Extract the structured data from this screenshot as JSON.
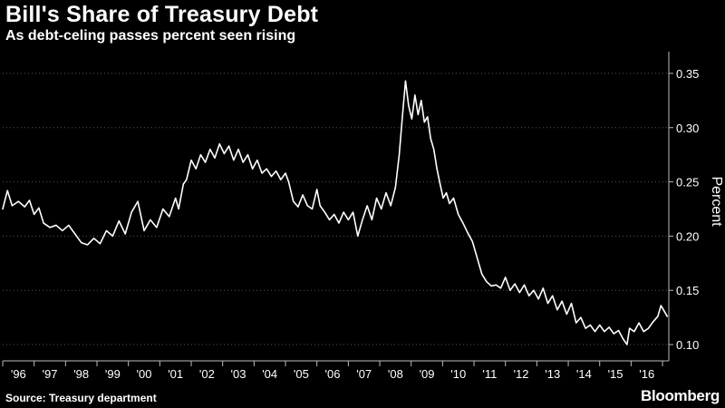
{
  "header": {
    "title": "Bill's Share of Treasury Debt",
    "subtitle": "As debt-celing passes percent seen rising"
  },
  "footer": {
    "source": "Source: Treasury department",
    "brand": "Bloomberg"
  },
  "colors": {
    "background": "#000000",
    "line": "#ffffff",
    "grid": "#555555",
    "axis": "#bbbbbb"
  },
  "chart_data": {
    "type": "line",
    "title": "Bill's Share of Treasury Debt",
    "subtitle": "As debt-celing passes percent seen rising",
    "xlabel": "",
    "ylabel": "Percent",
    "xlim": [
      1996,
      2017.2
    ],
    "ylim": [
      0.085,
      0.37
    ],
    "yticks": [
      0.1,
      0.15,
      0.2,
      0.25,
      0.3,
      0.35
    ],
    "ytick_labels": [
      "0.10",
      "0.15",
      "0.20",
      "0.25",
      "0.30",
      "0.35"
    ],
    "xtick_labels": [
      "'96",
      "'97",
      "'98",
      "'99",
      "'00",
      "'01",
      "'02",
      "'03",
      "'04",
      "'05",
      "'06",
      "'07",
      "'08",
      "'09",
      "'10",
      "'11",
      "'12",
      "'13",
      "'14",
      "'15",
      "'16"
    ],
    "grid": true,
    "series": [
      {
        "name": "Bill's share of Treasury debt",
        "points": [
          [
            1996.0,
            0.225
          ],
          [
            1996.15,
            0.242
          ],
          [
            1996.3,
            0.228
          ],
          [
            1996.5,
            0.232
          ],
          [
            1996.7,
            0.227
          ],
          [
            1996.85,
            0.233
          ],
          [
            1997.0,
            0.22
          ],
          [
            1997.15,
            0.226
          ],
          [
            1997.3,
            0.212
          ],
          [
            1997.5,
            0.208
          ],
          [
            1997.7,
            0.21
          ],
          [
            1997.9,
            0.205
          ],
          [
            1998.1,
            0.21
          ],
          [
            1998.3,
            0.202
          ],
          [
            1998.5,
            0.194
          ],
          [
            1998.7,
            0.192
          ],
          [
            1998.9,
            0.198
          ],
          [
            1999.1,
            0.193
          ],
          [
            1999.3,
            0.205
          ],
          [
            1999.5,
            0.2
          ],
          [
            1999.7,
            0.214
          ],
          [
            1999.9,
            0.202
          ],
          [
            2000.1,
            0.222
          ],
          [
            2000.3,
            0.232
          ],
          [
            2000.5,
            0.205
          ],
          [
            2000.7,
            0.215
          ],
          [
            2000.9,
            0.208
          ],
          [
            2001.1,
            0.225
          ],
          [
            2001.3,
            0.218
          ],
          [
            2001.5,
            0.235
          ],
          [
            2001.6,
            0.225
          ],
          [
            2001.75,
            0.248
          ],
          [
            2001.85,
            0.252
          ],
          [
            2002.0,
            0.27
          ],
          [
            2002.15,
            0.262
          ],
          [
            2002.3,
            0.275
          ],
          [
            2002.45,
            0.268
          ],
          [
            2002.6,
            0.28
          ],
          [
            2002.75,
            0.272
          ],
          [
            2002.9,
            0.285
          ],
          [
            2003.05,
            0.276
          ],
          [
            2003.2,
            0.283
          ],
          [
            2003.35,
            0.27
          ],
          [
            2003.5,
            0.28
          ],
          [
            2003.65,
            0.268
          ],
          [
            2003.8,
            0.275
          ],
          [
            2003.95,
            0.262
          ],
          [
            2004.1,
            0.27
          ],
          [
            2004.25,
            0.258
          ],
          [
            2004.4,
            0.262
          ],
          [
            2004.55,
            0.255
          ],
          [
            2004.7,
            0.26
          ],
          [
            2004.85,
            0.252
          ],
          [
            2005.0,
            0.258
          ],
          [
            2005.1,
            0.25
          ],
          [
            2005.25,
            0.232
          ],
          [
            2005.4,
            0.227
          ],
          [
            2005.55,
            0.238
          ],
          [
            2005.7,
            0.228
          ],
          [
            2005.85,
            0.225
          ],
          [
            2006.0,
            0.243
          ],
          [
            2006.1,
            0.228
          ],
          [
            2006.25,
            0.222
          ],
          [
            2006.4,
            0.215
          ],
          [
            2006.55,
            0.22
          ],
          [
            2006.7,
            0.212
          ],
          [
            2006.85,
            0.222
          ],
          [
            2007.0,
            0.215
          ],
          [
            2007.15,
            0.222
          ],
          [
            2007.3,
            0.2
          ],
          [
            2007.45,
            0.215
          ],
          [
            2007.6,
            0.228
          ],
          [
            2007.75,
            0.215
          ],
          [
            2007.9,
            0.235
          ],
          [
            2008.05,
            0.225
          ],
          [
            2008.2,
            0.24
          ],
          [
            2008.35,
            0.228
          ],
          [
            2008.5,
            0.245
          ],
          [
            2008.62,
            0.275
          ],
          [
            2008.72,
            0.31
          ],
          [
            2008.82,
            0.343
          ],
          [
            2008.92,
            0.32
          ],
          [
            2009.02,
            0.308
          ],
          [
            2009.12,
            0.33
          ],
          [
            2009.22,
            0.312
          ],
          [
            2009.32,
            0.325
          ],
          [
            2009.42,
            0.305
          ],
          [
            2009.52,
            0.31
          ],
          [
            2009.62,
            0.29
          ],
          [
            2009.72,
            0.28
          ],
          [
            2009.82,
            0.262
          ],
          [
            2009.92,
            0.248
          ],
          [
            2010.02,
            0.235
          ],
          [
            2010.12,
            0.24
          ],
          [
            2010.22,
            0.23
          ],
          [
            2010.35,
            0.235
          ],
          [
            2010.5,
            0.22
          ],
          [
            2010.65,
            0.212
          ],
          [
            2010.8,
            0.203
          ],
          [
            2010.95,
            0.195
          ],
          [
            2011.1,
            0.18
          ],
          [
            2011.25,
            0.165
          ],
          [
            2011.4,
            0.158
          ],
          [
            2011.55,
            0.154
          ],
          [
            2011.7,
            0.155
          ],
          [
            2011.85,
            0.152
          ],
          [
            2012.0,
            0.162
          ],
          [
            2012.15,
            0.15
          ],
          [
            2012.3,
            0.156
          ],
          [
            2012.45,
            0.148
          ],
          [
            2012.6,
            0.155
          ],
          [
            2012.75,
            0.145
          ],
          [
            2012.9,
            0.15
          ],
          [
            2013.05,
            0.142
          ],
          [
            2013.2,
            0.152
          ],
          [
            2013.35,
            0.138
          ],
          [
            2013.5,
            0.145
          ],
          [
            2013.65,
            0.132
          ],
          [
            2013.8,
            0.14
          ],
          [
            2013.95,
            0.128
          ],
          [
            2014.1,
            0.138
          ],
          [
            2014.25,
            0.12
          ],
          [
            2014.4,
            0.125
          ],
          [
            2014.55,
            0.115
          ],
          [
            2014.7,
            0.118
          ],
          [
            2014.85,
            0.112
          ],
          [
            2015.0,
            0.118
          ],
          [
            2015.15,
            0.112
          ],
          [
            2015.3,
            0.116
          ],
          [
            2015.45,
            0.11
          ],
          [
            2015.6,
            0.113
          ],
          [
            2015.75,
            0.105
          ],
          [
            2015.87,
            0.1
          ],
          [
            2015.95,
            0.115
          ],
          [
            2016.1,
            0.112
          ],
          [
            2016.25,
            0.12
          ],
          [
            2016.4,
            0.112
          ],
          [
            2016.55,
            0.115
          ],
          [
            2016.7,
            0.121
          ],
          [
            2016.85,
            0.126
          ],
          [
            2016.95,
            0.136
          ],
          [
            2017.05,
            0.131
          ],
          [
            2017.15,
            0.126
          ]
        ]
      }
    ]
  }
}
